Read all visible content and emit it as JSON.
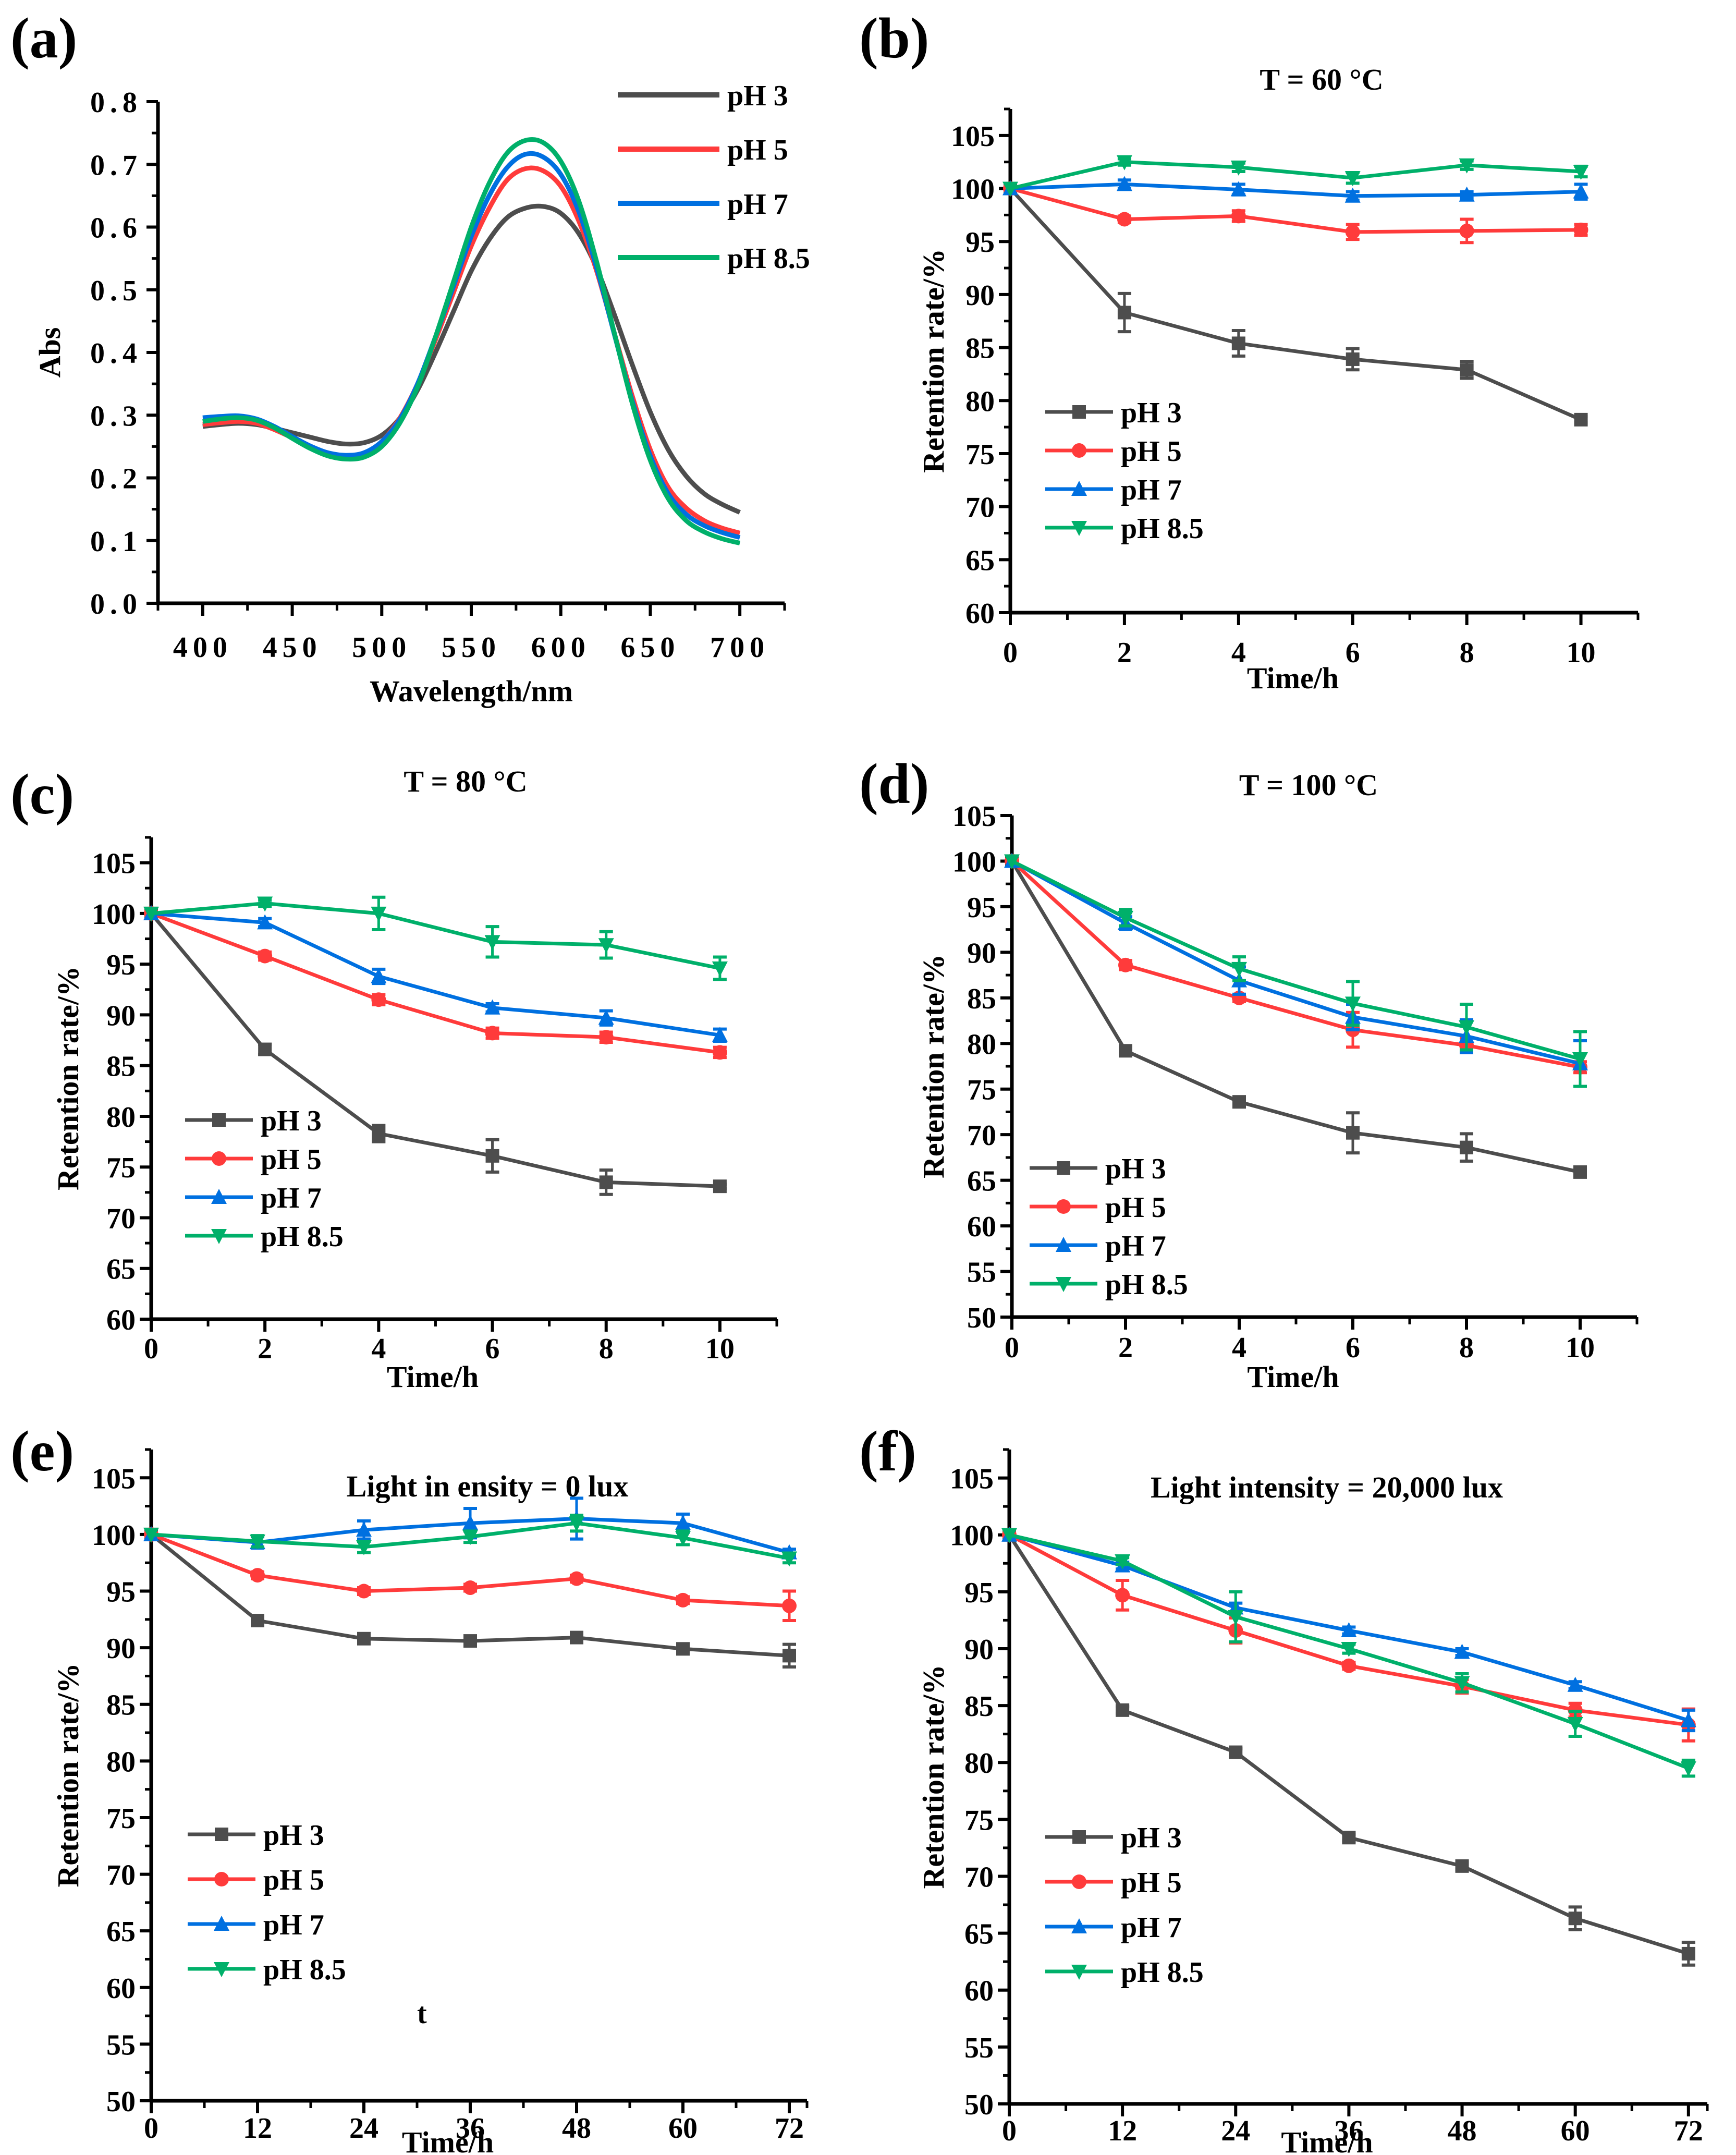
{
  "figure": {
    "colors": {
      "pH 3": "#4d4d4d",
      "pH 5": "#ff3b3b",
      "pH 7": "#0070e0",
      "pH 8.5": "#00b06a"
    }
  },
  "chart_data": [
    {
      "panel": "(a)",
      "type": "line",
      "title": "",
      "xlabel": "Wavelength/nm",
      "ylabel": "Abs",
      "xlim": [
        375,
        725
      ],
      "ylim": [
        0.0,
        0.8
      ],
      "xticks": [
        400,
        450,
        500,
        550,
        600,
        650,
        700
      ],
      "xtick_labels": [
        "400",
        "450",
        "500",
        "550",
        "600",
        "650",
        "700"
      ],
      "yticks": [
        0.0,
        0.1,
        0.2,
        0.3,
        0.4,
        0.5,
        0.6,
        0.7,
        0.8
      ],
      "ytick_labels": [
        "0.0",
        "0.1",
        "0.2",
        "0.3",
        "0.4",
        "0.5",
        "0.6",
        "0.7",
        "0.8"
      ],
      "legend": [
        "pH 3",
        "pH 5",
        "pH 7",
        "pH 8.5"
      ],
      "legend_position": "top-right",
      "grid": false,
      "x": [
        400,
        410,
        420,
        430,
        440,
        450,
        460,
        470,
        480,
        490,
        500,
        510,
        520,
        530,
        540,
        550,
        560,
        570,
        580,
        590,
        600,
        610,
        620,
        630,
        640,
        650,
        660,
        670,
        680,
        690,
        700
      ],
      "series": [
        {
          "name": "pH 3",
          "values": [
            0.282,
            0.285,
            0.287,
            0.285,
            0.279,
            0.272,
            0.265,
            0.258,
            0.254,
            0.256,
            0.268,
            0.295,
            0.34,
            0.4,
            0.465,
            0.53,
            0.58,
            0.615,
            0.63,
            0.633,
            0.622,
            0.59,
            0.535,
            0.46,
            0.38,
            0.305,
            0.245,
            0.203,
            0.175,
            0.158,
            0.145
          ]
        },
        {
          "name": "pH 5",
          "values": [
            0.285,
            0.288,
            0.29,
            0.287,
            0.277,
            0.264,
            0.25,
            0.239,
            0.233,
            0.238,
            0.258,
            0.295,
            0.35,
            0.42,
            0.495,
            0.57,
            0.63,
            0.675,
            0.693,
            0.69,
            0.665,
            0.61,
            0.53,
            0.43,
            0.33,
            0.245,
            0.185,
            0.152,
            0.132,
            0.12,
            0.112
          ]
        },
        {
          "name": "pH 7",
          "values": [
            0.296,
            0.298,
            0.299,
            0.294,
            0.282,
            0.266,
            0.251,
            0.24,
            0.236,
            0.24,
            0.258,
            0.293,
            0.35,
            0.425,
            0.505,
            0.585,
            0.65,
            0.695,
            0.716,
            0.712,
            0.684,
            0.625,
            0.535,
            0.428,
            0.322,
            0.235,
            0.175,
            0.142,
            0.124,
            0.113,
            0.105
          ]
        },
        {
          "name": "pH 8.5",
          "values": [
            0.29,
            0.294,
            0.296,
            0.292,
            0.28,
            0.263,
            0.247,
            0.235,
            0.23,
            0.233,
            0.25,
            0.287,
            0.345,
            0.425,
            0.512,
            0.6,
            0.67,
            0.718,
            0.738,
            0.735,
            0.705,
            0.642,
            0.545,
            0.43,
            0.318,
            0.228,
            0.167,
            0.132,
            0.114,
            0.103,
            0.096
          ]
        }
      ]
    },
    {
      "panel": "(b)",
      "type": "line",
      "title": "T = 60 °C",
      "xlabel": "Time/h",
      "ylabel": "Retention rate/%",
      "xlim": [
        0,
        11
      ],
      "ylim": [
        60,
        107.5
      ],
      "xticks": [
        0,
        2,
        4,
        6,
        8,
        10
      ],
      "xtick_labels": [
        "0",
        "2",
        "4",
        "6",
        "8",
        "10"
      ],
      "yticks": [
        60,
        65,
        70,
        75,
        80,
        85,
        90,
        95,
        100,
        105
      ],
      "ytick_labels": [
        "60",
        "65",
        "70",
        "75",
        "80",
        "85",
        "90",
        "95",
        "100",
        "105"
      ],
      "legend": [
        "pH 3",
        "pH 5",
        "pH 7",
        "pH 8.5"
      ],
      "legend_position": "bottom-left",
      "grid": false,
      "x": [
        0,
        2,
        4,
        6,
        8,
        10
      ],
      "series": [
        {
          "name": "pH 3",
          "marker": "square",
          "values": [
            100,
            88.3,
            85.4,
            83.9,
            82.9,
            78.2
          ],
          "errors": [
            0,
            1.8,
            1.2,
            1.0,
            0.8,
            0.3
          ]
        },
        {
          "name": "pH 5",
          "marker": "circle",
          "values": [
            100,
            97.1,
            97.4,
            95.9,
            96.0,
            96.1
          ],
          "errors": [
            0,
            0.3,
            0.5,
            0.7,
            1.1,
            0.5
          ]
        },
        {
          "name": "pH 7",
          "marker": "triangle-up",
          "values": [
            100,
            100.4,
            99.9,
            99.3,
            99.4,
            99.7
          ],
          "errors": [
            0,
            0.4,
            0.5,
            0.4,
            0.3,
            0.7
          ]
        },
        {
          "name": "pH 8.5",
          "marker": "triangle-down",
          "values": [
            100,
            102.5,
            102.0,
            101.0,
            102.2,
            101.6
          ],
          "errors": [
            0,
            0.3,
            0.4,
            0.5,
            0.4,
            0.5
          ]
        }
      ]
    },
    {
      "panel": "(c)",
      "type": "line",
      "title": "T = 80 °C",
      "xlabel": "Time/h",
      "ylabel": "Retention rate/%",
      "xlim": [
        0,
        11
      ],
      "ylim": [
        60,
        107.5
      ],
      "xticks": [
        0,
        2,
        4,
        6,
        8,
        10
      ],
      "xtick_labels": [
        "0",
        "2",
        "4",
        "6",
        "8",
        "10"
      ],
      "yticks": [
        60,
        65,
        70,
        75,
        80,
        85,
        90,
        95,
        100,
        105
      ],
      "ytick_labels": [
        "60",
        "65",
        "70",
        "75",
        "80",
        "85",
        "90",
        "95",
        "100",
        "105"
      ],
      "legend": [
        "pH 3",
        "pH 5",
        "pH 7",
        "pH 8.5"
      ],
      "legend_position": "bottom-left",
      "grid": false,
      "x": [
        0,
        2,
        4,
        6,
        8,
        10
      ],
      "series": [
        {
          "name": "pH 3",
          "marker": "square",
          "values": [
            100,
            86.6,
            78.3,
            76.1,
            73.5,
            73.1
          ],
          "errors": [
            0,
            0.5,
            0.8,
            1.6,
            1.2,
            0.2
          ]
        },
        {
          "name": "pH 5",
          "marker": "circle",
          "values": [
            100,
            95.8,
            91.5,
            88.2,
            87.8,
            86.3
          ],
          "errors": [
            0,
            0.4,
            0.5,
            0.5,
            0.5,
            0.5
          ]
        },
        {
          "name": "pH 7",
          "marker": "triangle-up",
          "values": [
            100,
            99.1,
            93.8,
            90.7,
            89.7,
            88.0
          ],
          "errors": [
            0,
            0.4,
            0.7,
            0.4,
            0.7,
            0.6
          ]
        },
        {
          "name": "pH 8.5",
          "marker": "triangle-down",
          "values": [
            100,
            101.0,
            100.0,
            97.2,
            96.9,
            94.6
          ],
          "errors": [
            0,
            0.3,
            1.6,
            1.5,
            1.3,
            1.1
          ]
        }
      ]
    },
    {
      "panel": "(d)",
      "type": "line",
      "title": "T = 100 °C",
      "xlabel": "Time/h",
      "ylabel": "Retention rate/%",
      "xlim": [
        0,
        11
      ],
      "ylim": [
        50,
        105
      ],
      "xticks": [
        0,
        2,
        4,
        6,
        8,
        10
      ],
      "xtick_labels": [
        "0",
        "2",
        "4",
        "6",
        "8",
        "10"
      ],
      "yticks": [
        50,
        55,
        60,
        65,
        70,
        75,
        80,
        85,
        90,
        95,
        100,
        105
      ],
      "ytick_labels": [
        "50",
        "55",
        "60",
        "65",
        "70",
        "75",
        "80",
        "85",
        "90",
        "95",
        "100",
        "105"
      ],
      "legend": [
        "pH 3",
        "pH 5",
        "pH 7",
        "pH 8.5"
      ],
      "legend_position": "bottom-left",
      "grid": false,
      "x": [
        0,
        2,
        4,
        6,
        8,
        10
      ],
      "series": [
        {
          "name": "pH 3",
          "marker": "square",
          "values": [
            100,
            79.2,
            73.6,
            70.2,
            68.6,
            65.9
          ],
          "errors": [
            0,
            0.3,
            0.3,
            2.2,
            1.5,
            0.2
          ]
        },
        {
          "name": "pH 5",
          "marker": "circle",
          "values": [
            100,
            88.6,
            85.0,
            81.5,
            79.8,
            77.4
          ],
          "errors": [
            0,
            0.5,
            0.4,
            1.9,
            0.8,
            0.6
          ]
        },
        {
          "name": "pH 7",
          "marker": "triangle-up",
          "values": [
            100,
            93.2,
            86.9,
            82.9,
            80.8,
            77.8
          ],
          "errors": [
            0,
            0.7,
            1.5,
            1.4,
            1.8,
            2.5
          ]
        },
        {
          "name": "pH 8.5",
          "marker": "triangle-down",
          "values": [
            100,
            93.8,
            88.2,
            84.4,
            81.8,
            78.3
          ],
          "errors": [
            0,
            0.9,
            1.3,
            2.4,
            2.5,
            3.0
          ]
        }
      ]
    },
    {
      "panel": "(e)",
      "type": "line",
      "title": "Light in ensity = 0 lux",
      "xlabel": "Time/h",
      "ylabel": "Retention rate/%",
      "xlim": [
        0,
        74
      ],
      "ylim": [
        50,
        107.5
      ],
      "xticks": [
        0,
        12,
        24,
        36,
        48,
        60,
        72
      ],
      "xtick_labels": [
        "0",
        "12",
        "24",
        "36",
        "48",
        "60",
        "72"
      ],
      "yticks": [
        50,
        55,
        60,
        65,
        70,
        75,
        80,
        85,
        90,
        95,
        100,
        105
      ],
      "ytick_labels": [
        "50",
        "55",
        "60",
        "65",
        "70",
        "75",
        "80",
        "85",
        "90",
        "95",
        "100",
        "105"
      ],
      "legend": [
        "pH 3",
        "pH 5",
        "pH 7",
        "pH 8.5"
      ],
      "legend_position": "bottom-left",
      "annotation": "t",
      "grid": false,
      "x": [
        0,
        12,
        24,
        36,
        48,
        60,
        72
      ],
      "series": [
        {
          "name": "pH 3",
          "marker": "square",
          "values": [
            100,
            92.4,
            90.8,
            90.6,
            90.9,
            89.9,
            89.3
          ],
          "errors": [
            0,
            0.3,
            0.3,
            0.3,
            0.3,
            0.3,
            1.0
          ]
        },
        {
          "name": "pH 5",
          "marker": "circle",
          "values": [
            100,
            96.4,
            95.0,
            95.3,
            96.1,
            94.2,
            93.7
          ],
          "errors": [
            0,
            0.3,
            0.3,
            0.3,
            0.3,
            0.3,
            1.3
          ]
        },
        {
          "name": "pH 7",
          "marker": "triangle-up",
          "values": [
            100,
            99.3,
            100.4,
            101.0,
            101.4,
            101.0,
            98.4
          ],
          "errors": [
            0,
            0.5,
            0.8,
            1.3,
            1.8,
            0.8,
            0.3
          ]
        },
        {
          "name": "pH 8.5",
          "marker": "triangle-down",
          "values": [
            100,
            99.4,
            98.9,
            99.8,
            101.0,
            99.7,
            97.9
          ],
          "errors": [
            0,
            0.5,
            0.5,
            0.5,
            0.7,
            0.6,
            0.4
          ]
        }
      ]
    },
    {
      "panel": "(f)",
      "type": "line",
      "title": "Light intensity = 20,000 lux",
      "xlabel": "Time/h",
      "ylabel": "Retention rate/%",
      "xlim": [
        0,
        74
      ],
      "ylim": [
        50,
        107.5
      ],
      "xticks": [
        0,
        12,
        24,
        36,
        48,
        60,
        72
      ],
      "xtick_labels": [
        "0",
        "12",
        "24",
        "36",
        "48",
        "60",
        "72"
      ],
      "yticks": [
        50,
        55,
        60,
        65,
        70,
        75,
        80,
        85,
        90,
        95,
        100,
        105
      ],
      "ytick_labels": [
        "50",
        "55",
        "60",
        "65",
        "70",
        "75",
        "80",
        "85",
        "90",
        "95",
        "100",
        "105"
      ],
      "legend": [
        "pH 3",
        "pH 5",
        "pH 7",
        "pH 8.5"
      ],
      "legend_position": "bottom-left",
      "grid": false,
      "x": [
        0,
        12,
        24,
        36,
        48,
        60,
        72
      ],
      "series": [
        {
          "name": "pH 3",
          "marker": "square",
          "values": [
            100,
            84.6,
            80.9,
            73.4,
            70.9,
            66.3,
            63.2
          ],
          "errors": [
            0,
            0.3,
            0.3,
            0.3,
            0.3,
            1.0,
            1.0
          ]
        },
        {
          "name": "pH 5",
          "marker": "circle",
          "values": [
            100,
            94.7,
            91.6,
            88.5,
            86.7,
            84.6,
            83.3
          ],
          "errors": [
            0,
            1.3,
            1.1,
            0.3,
            0.6,
            0.6,
            1.4
          ]
        },
        {
          "name": "pH 7",
          "marker": "triangle-up",
          "values": [
            100,
            97.3,
            93.6,
            91.6,
            89.7,
            86.8,
            83.7
          ],
          "errors": [
            0,
            0.3,
            0.4,
            0.3,
            0.3,
            0.3,
            0.9
          ]
        },
        {
          "name": "pH 8.5",
          "marker": "triangle-down",
          "values": [
            100,
            97.7,
            92.8,
            90.0,
            87.0,
            83.4,
            79.5
          ],
          "errors": [
            0,
            0.3,
            2.2,
            0.4,
            0.8,
            1.1,
            0.7
          ]
        }
      ]
    }
  ]
}
